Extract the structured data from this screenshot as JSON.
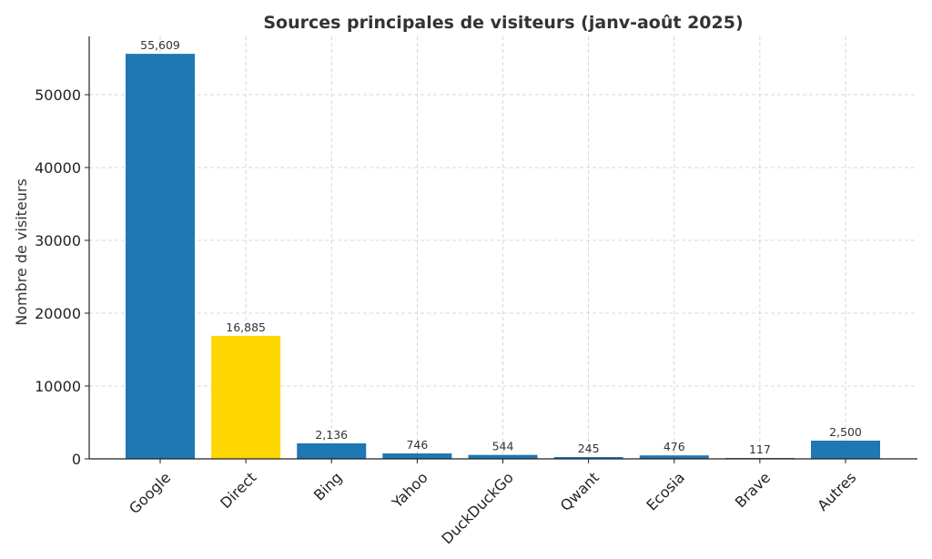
{
  "colors": {
    "default_bar": "#1f77b4",
    "highlight_bar": "#ffd700"
  },
  "chart_data": {
    "type": "bar",
    "title": "Sources principales de visiteurs (janv-août 2025)",
    "xlabel": "",
    "ylabel": "Nombre de visiteurs",
    "ylim": [
      0,
      58000
    ],
    "yticks": [
      0,
      10000,
      20000,
      30000,
      40000,
      50000
    ],
    "grid": true,
    "categories": [
      "Google",
      "Direct",
      "Bing",
      "Yahoo",
      "DuckDuckGo",
      "Qwant",
      "Ecosia",
      "Brave",
      "Autres"
    ],
    "values": [
      55609,
      16885,
      2136,
      746,
      544,
      245,
      476,
      117,
      2500
    ],
    "value_labels": [
      "55,609",
      "16,885",
      "2,136",
      "746",
      "544",
      "245",
      "476",
      "117",
      "2,500"
    ],
    "bar_colors": [
      "#1f77b4",
      "#ffd700",
      "#1f77b4",
      "#1f77b4",
      "#1f77b4",
      "#1f77b4",
      "#1f77b4",
      "#1f77b4",
      "#1f77b4"
    ]
  }
}
